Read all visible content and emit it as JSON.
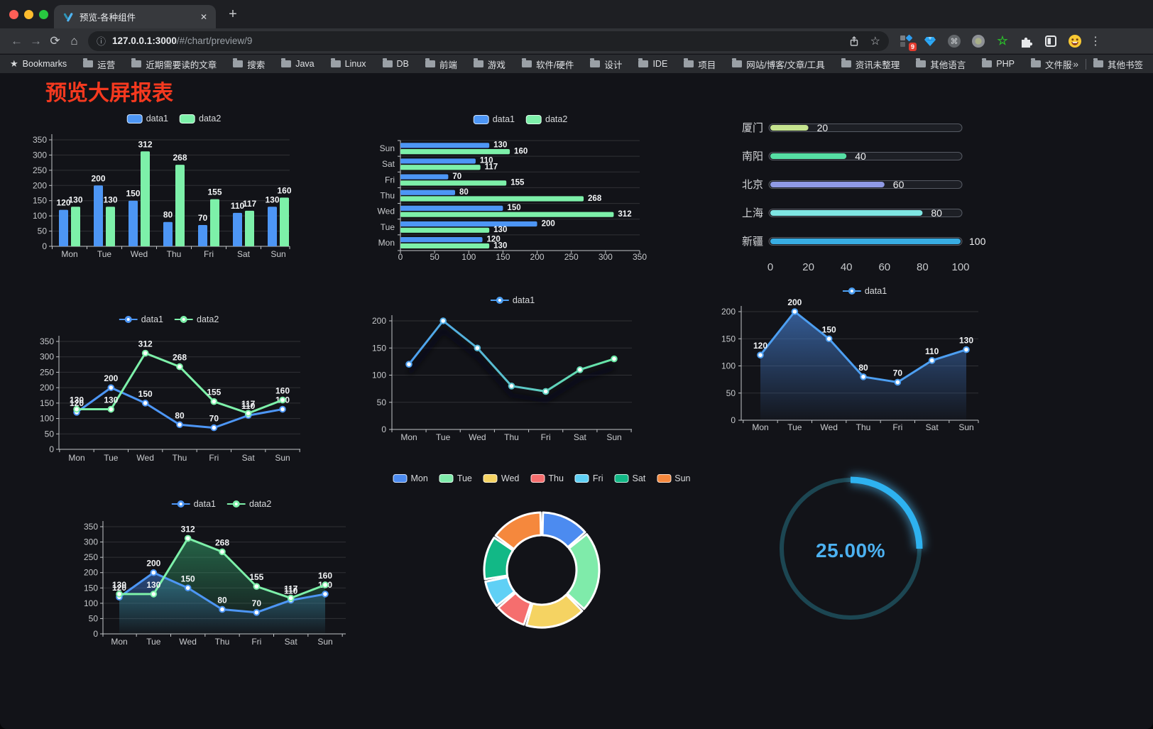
{
  "browser": {
    "tab": {
      "title": "预览-各种组件",
      "close_glyph": "✕"
    },
    "new_tab_glyph": "+",
    "icons": {
      "back": "←",
      "forward": "→",
      "reload": "⟳",
      "home": "⌂",
      "info": "ⓘ",
      "bookmark_star": "☆",
      "kebab": "⋮",
      "overflow": "»",
      "bookmarks_star": "★"
    },
    "url": {
      "host": "127.0.0.1:3000",
      "path": "/#/chart/preview/9"
    },
    "bookmarks": [
      "Bookmarks",
      "运营",
      "近期需要读的文章",
      "搜索",
      "Java",
      "Linux",
      "DB",
      "前端",
      "游戏",
      "软件/硬件",
      "设计",
      "IDE",
      "项目",
      "网站/博客/文章/工具",
      "资讯未整理",
      "其他语言",
      "PHP",
      "文件服务器"
    ],
    "other_bookmarks": "其他书签",
    "extensions": [
      {
        "name": "pinned-grid",
        "badge": "9"
      },
      {
        "name": "gem"
      },
      {
        "name": "command"
      },
      {
        "name": "record-circle"
      },
      {
        "name": "green-star"
      },
      {
        "name": "puzzle"
      },
      {
        "name": "split-square"
      },
      {
        "name": "emoji"
      }
    ]
  },
  "page": {
    "title": "预览大屏报表",
    "title_color": "#f5391f",
    "background": "#121318"
  },
  "chart_data": [
    {
      "type": "bar",
      "orientation": "vertical",
      "categories": [
        "Mon",
        "Tue",
        "Wed",
        "Thu",
        "Fri",
        "Sat",
        "Sun"
      ],
      "series": [
        {
          "name": "data1",
          "color": "#4d96f5",
          "values": [
            120,
            200,
            150,
            80,
            70,
            110,
            130
          ]
        },
        {
          "name": "data2",
          "color": "#7df0a9",
          "values": [
            130,
            130,
            312,
            268,
            155,
            117,
            160
          ]
        }
      ],
      "ylim": [
        0,
        350
      ],
      "yticks": [
        0,
        50,
        100,
        150,
        200,
        250,
        300,
        350
      ],
      "legend_position": "top",
      "value_labels": true
    },
    {
      "type": "bar",
      "orientation": "horizontal",
      "categories": [
        "Mon",
        "Tue",
        "Wed",
        "Thu",
        "Fri",
        "Sat",
        "Sun"
      ],
      "category_top": "Sun",
      "series": [
        {
          "name": "data1",
          "color": "#4d96f5",
          "values": [
            120,
            200,
            150,
            80,
            70,
            110,
            130
          ]
        },
        {
          "name": "data2",
          "color": "#7df0a9",
          "values": [
            130,
            130,
            312,
            268,
            155,
            117,
            160
          ]
        }
      ],
      "xlim": [
        0,
        350
      ],
      "xticks": [
        0,
        50,
        100,
        150,
        200,
        250,
        300,
        350
      ],
      "legend_position": "top",
      "value_labels": true
    },
    {
      "type": "bar",
      "subtype": "progress",
      "categories": [
        "厦门",
        "南阳",
        "北京",
        "上海",
        "新疆"
      ],
      "values": [
        20,
        40,
        60,
        80,
        100
      ],
      "colors": [
        "#c5e48f",
        "#56dfa4",
        "#8f9ae5",
        "#7fe6e3",
        "#38ade3"
      ],
      "xlim": [
        0,
        100
      ],
      "xticks": [
        0,
        20,
        40,
        60,
        80,
        100
      ],
      "value_labels": true
    },
    {
      "type": "line",
      "categories": [
        "Mon",
        "Tue",
        "Wed",
        "Thu",
        "Fri",
        "Sat",
        "Sun"
      ],
      "series": [
        {
          "name": "data1",
          "color": "#4d96f5",
          "values": [
            120,
            200,
            150,
            80,
            70,
            110,
            130
          ]
        },
        {
          "name": "data2",
          "color": "#7df0a9",
          "values": [
            130,
            130,
            312,
            268,
            155,
            117,
            160
          ]
        }
      ],
      "ylim": [
        0,
        350
      ],
      "yticks": [
        0,
        50,
        100,
        150,
        200,
        250,
        300,
        350
      ],
      "legend_position": "top",
      "value_labels": true
    },
    {
      "type": "line",
      "categories": [
        "Mon",
        "Tue",
        "Wed",
        "Thu",
        "Fri",
        "Sat",
        "Sun"
      ],
      "series": [
        {
          "name": "data1",
          "gradient": [
            "#4d9ff2",
            "#68e8a4"
          ],
          "values": [
            120,
            200,
            150,
            80,
            70,
            110,
            130
          ]
        }
      ],
      "ylim": [
        0,
        200
      ],
      "yticks": [
        0,
        50,
        100,
        150,
        200
      ],
      "legend_position": "top",
      "value_labels": false,
      "line_shadow": true
    },
    {
      "type": "area",
      "categories": [
        "Mon",
        "Tue",
        "Wed",
        "Thu",
        "Fri",
        "Sat",
        "Sun"
      ],
      "series": [
        {
          "name": "data1",
          "color": "#4d9ff2",
          "area": [
            "rgba(64,116,190,0.75)",
            "rgba(64,116,190,0.03)"
          ],
          "values": [
            120,
            200,
            150,
            80,
            70,
            110,
            130
          ]
        }
      ],
      "ylim": [
        0,
        200
      ],
      "yticks": [
        0,
        50,
        100,
        150,
        200
      ],
      "legend_position": "top",
      "value_labels": true
    },
    {
      "type": "area",
      "categories": [
        "Mon",
        "Tue",
        "Wed",
        "Thu",
        "Fri",
        "Sat",
        "Sun"
      ],
      "series": [
        {
          "name": "data1",
          "color": "#4d96f5",
          "area": [
            "rgba(62,120,210,0.55)",
            "rgba(62,120,210,0.02)"
          ],
          "values": [
            120,
            200,
            150,
            80,
            70,
            110,
            130
          ]
        },
        {
          "name": "data2",
          "color": "#7df0a9",
          "area": [
            "rgba(56,180,118,0.50)",
            "rgba(56,180,118,0.02)"
          ],
          "values": [
            130,
            130,
            312,
            268,
            155,
            117,
            160
          ]
        }
      ],
      "ylim": [
        0,
        350
      ],
      "yticks": [
        0,
        50,
        100,
        150,
        200,
        250,
        300,
        350
      ],
      "legend_position": "top",
      "value_labels": true
    },
    {
      "type": "pie",
      "shape": "donut",
      "categories": [
        "Mon",
        "Tue",
        "Wed",
        "Thu",
        "Fri",
        "Sat",
        "Sun"
      ],
      "values": [
        120,
        200,
        150,
        80,
        70,
        110,
        130
      ],
      "colors": [
        "#4c8bf0",
        "#7febaa",
        "#f5d362",
        "#f56e6e",
        "#5fd0f5",
        "#12b886",
        "#f5883d"
      ],
      "legend_position": "top"
    },
    {
      "type": "gauge",
      "value_percent": 25,
      "label": "25.00%",
      "progress_color": "#2eb2f0",
      "track_color": "#1c4652",
      "text_color": "#4cb1f0"
    }
  ]
}
